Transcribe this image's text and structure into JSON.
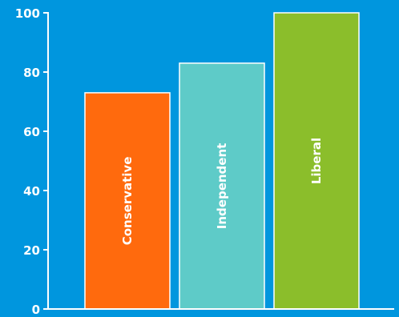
{
  "chart_data": {
    "type": "bar",
    "categories": [
      "Conservative",
      "Independent",
      "Liberal"
    ],
    "values": [
      73,
      83,
      100
    ],
    "colors": [
      "#FF6A0D",
      "#5ECBC8",
      "#8BBE2B"
    ],
    "background": "#0096DE",
    "ylim": [
      0,
      100
    ],
    "yticks": [
      0,
      20,
      40,
      60,
      80,
      100
    ],
    "title": "",
    "xlabel": "",
    "ylabel": "",
    "grid": false,
    "legend": "none"
  }
}
